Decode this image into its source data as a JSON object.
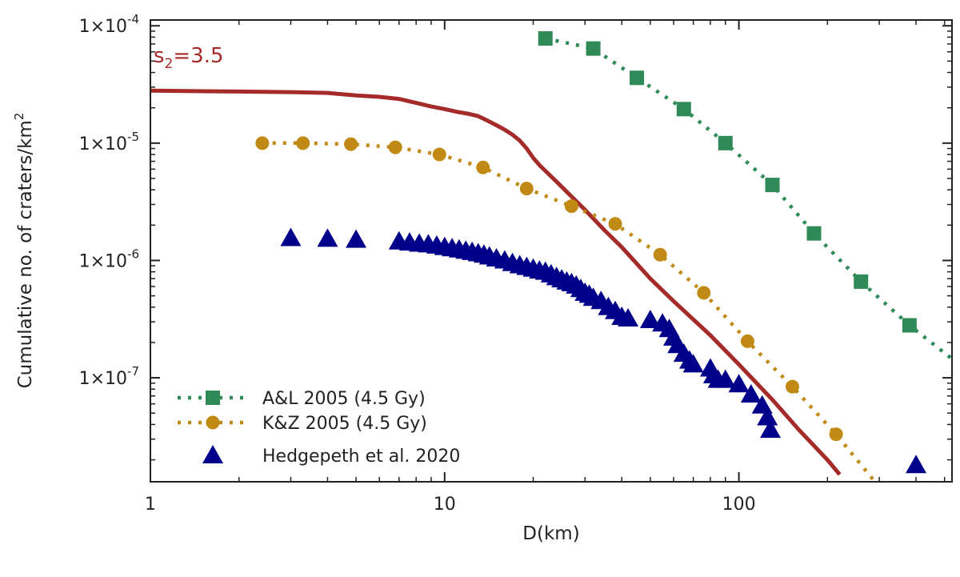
{
  "chart_data": {
    "type": "scatter",
    "xscale": "log",
    "yscale": "log",
    "xlim": [
      1,
      530
    ],
    "ylim": [
      1.3e-08,
      0.000112
    ],
    "xlabel": "D(km)",
    "ylabel": "Cumulative no. of craters/km",
    "ylabel_sup": "2",
    "xticks": [
      {
        "value": 1,
        "label": "1"
      },
      {
        "value": 10,
        "label": "10"
      },
      {
        "value": 100,
        "label": "100"
      }
    ],
    "yticks": [
      {
        "value": 1e-07,
        "base": "1×10",
        "exp": "-7"
      },
      {
        "value": 1e-06,
        "base": "1×10",
        "exp": "-6"
      },
      {
        "value": 1e-05,
        "base": "1×10",
        "exp": "-5"
      },
      {
        "value": 0.0001,
        "base": "1×10",
        "exp": "-4"
      }
    ],
    "annotation": {
      "main": "s",
      "sub": "2",
      "rest": "=3.5",
      "color": "#a52a2a"
    },
    "model_curve": {
      "name": "s2=3.5",
      "color": "#a52a2a",
      "x": [
        1,
        2,
        3,
        4,
        5,
        6,
        7,
        8,
        9,
        10,
        11,
        12,
        13,
        14,
        15,
        16,
        17,
        18,
        19,
        20,
        21,
        22,
        24,
        27,
        30,
        35,
        40,
        50,
        60,
        80,
        100,
        130,
        160,
        200,
        220
      ],
      "y": [
        2.8e-05,
        2.75e-05,
        2.72e-05,
        2.68e-05,
        2.55e-05,
        2.48e-05,
        2.38e-05,
        2.2e-05,
        2.05e-05,
        1.95e-05,
        1.85e-05,
        1.78e-05,
        1.7e-05,
        1.55e-05,
        1.42e-05,
        1.3e-05,
        1.18e-05,
        1.05e-05,
        9e-06,
        7.5e-06,
        6.5e-06,
        5.8e-06,
        4.7e-06,
        3.5e-06,
        2.7e-06,
        1.8e-06,
        1.3e-06,
        7e-07,
        4.5e-07,
        2.3e-07,
        1.3e-07,
        6.5e-08,
        3.6e-08,
        2e-08,
        1.5e-08
      ]
    },
    "series": [
      {
        "name": "A&L 2005 (4.5 Gy)",
        "color": "#2e8b57",
        "marker": "square",
        "line": "dotted",
        "x": [
          22,
          32,
          45,
          65,
          90,
          130,
          180,
          260,
          380
        ],
        "y": [
          7.8e-05,
          6.4e-05,
          3.6e-05,
          1.95e-05,
          1e-05,
          4.4e-06,
          1.7e-06,
          6.6e-07,
          2.8e-07
        ],
        "line_extension": {
          "x": 530,
          "y": 1.45e-07
        }
      },
      {
        "name": "K&Z 2005 (4.5 Gy)",
        "color": "#c08a14",
        "marker": "circle",
        "line": "dotted",
        "x": [
          2.4,
          3.3,
          4.8,
          6.8,
          9.6,
          13.5,
          19,
          27,
          38,
          54,
          76,
          107,
          152,
          214
        ],
        "y": [
          1e-05,
          1e-05,
          9.8e-06,
          9.2e-06,
          8e-06,
          6.2e-06,
          4.1e-06,
          2.9e-06,
          2.05e-06,
          1.12e-06,
          5.3e-07,
          2.05e-07,
          8.4e-08,
          3.3e-08
        ],
        "line_extension": {
          "x": 290,
          "y": 1.3e-08
        }
      },
      {
        "name": "Hedgepeth et al. 2020",
        "color": "#00008b",
        "marker": "triangle",
        "line": "none",
        "x": [
          3,
          4,
          5,
          7,
          7.6,
          8.2,
          8.8,
          9.4,
          10,
          10.6,
          11.2,
          11.8,
          12.4,
          13,
          13.6,
          14.2,
          15,
          16,
          17,
          18,
          19,
          20,
          21,
          22,
          23,
          24,
          25,
          26,
          27,
          28,
          29,
          30,
          31,
          32,
          34,
          36,
          38,
          40,
          42,
          50,
          55,
          58,
          60,
          62,
          65,
          68,
          70,
          80,
          82,
          85,
          90,
          100,
          110,
          120,
          125,
          128,
          400
        ],
        "y": [
          1.55e-06,
          1.53e-06,
          1.5e-06,
          1.45e-06,
          1.42e-06,
          1.39e-06,
          1.37e-06,
          1.34e-06,
          1.3e-06,
          1.27e-06,
          1.24e-06,
          1.21e-06,
          1.18e-06,
          1.15e-06,
          1.12e-06,
          1.08e-06,
          1.04e-06,
          1e-06,
          9.5e-07,
          9.1e-07,
          8.8e-07,
          8.5e-07,
          8.2e-07,
          8e-07,
          7.6e-07,
          7.2e-07,
          6.9e-07,
          6.6e-07,
          6.4e-07,
          6.1e-07,
          5.7e-07,
          5.3e-07,
          5.1e-07,
          4.8e-07,
          4.5e-07,
          4e-07,
          3.7e-07,
          3.3e-07,
          3.2e-07,
          3.1e-07,
          2.9e-07,
          2.6e-07,
          2.2e-07,
          1.9e-07,
          1.6e-07,
          1.4e-07,
          1.3e-07,
          1.2e-07,
          1.05e-07,
          9.6e-08,
          9.6e-08,
          8.8e-08,
          7.2e-08,
          5.8e-08,
          4.6e-08,
          3.6e-08,
          1.8e-08
        ]
      }
    ],
    "legend": {
      "position": "bottom-left"
    }
  }
}
